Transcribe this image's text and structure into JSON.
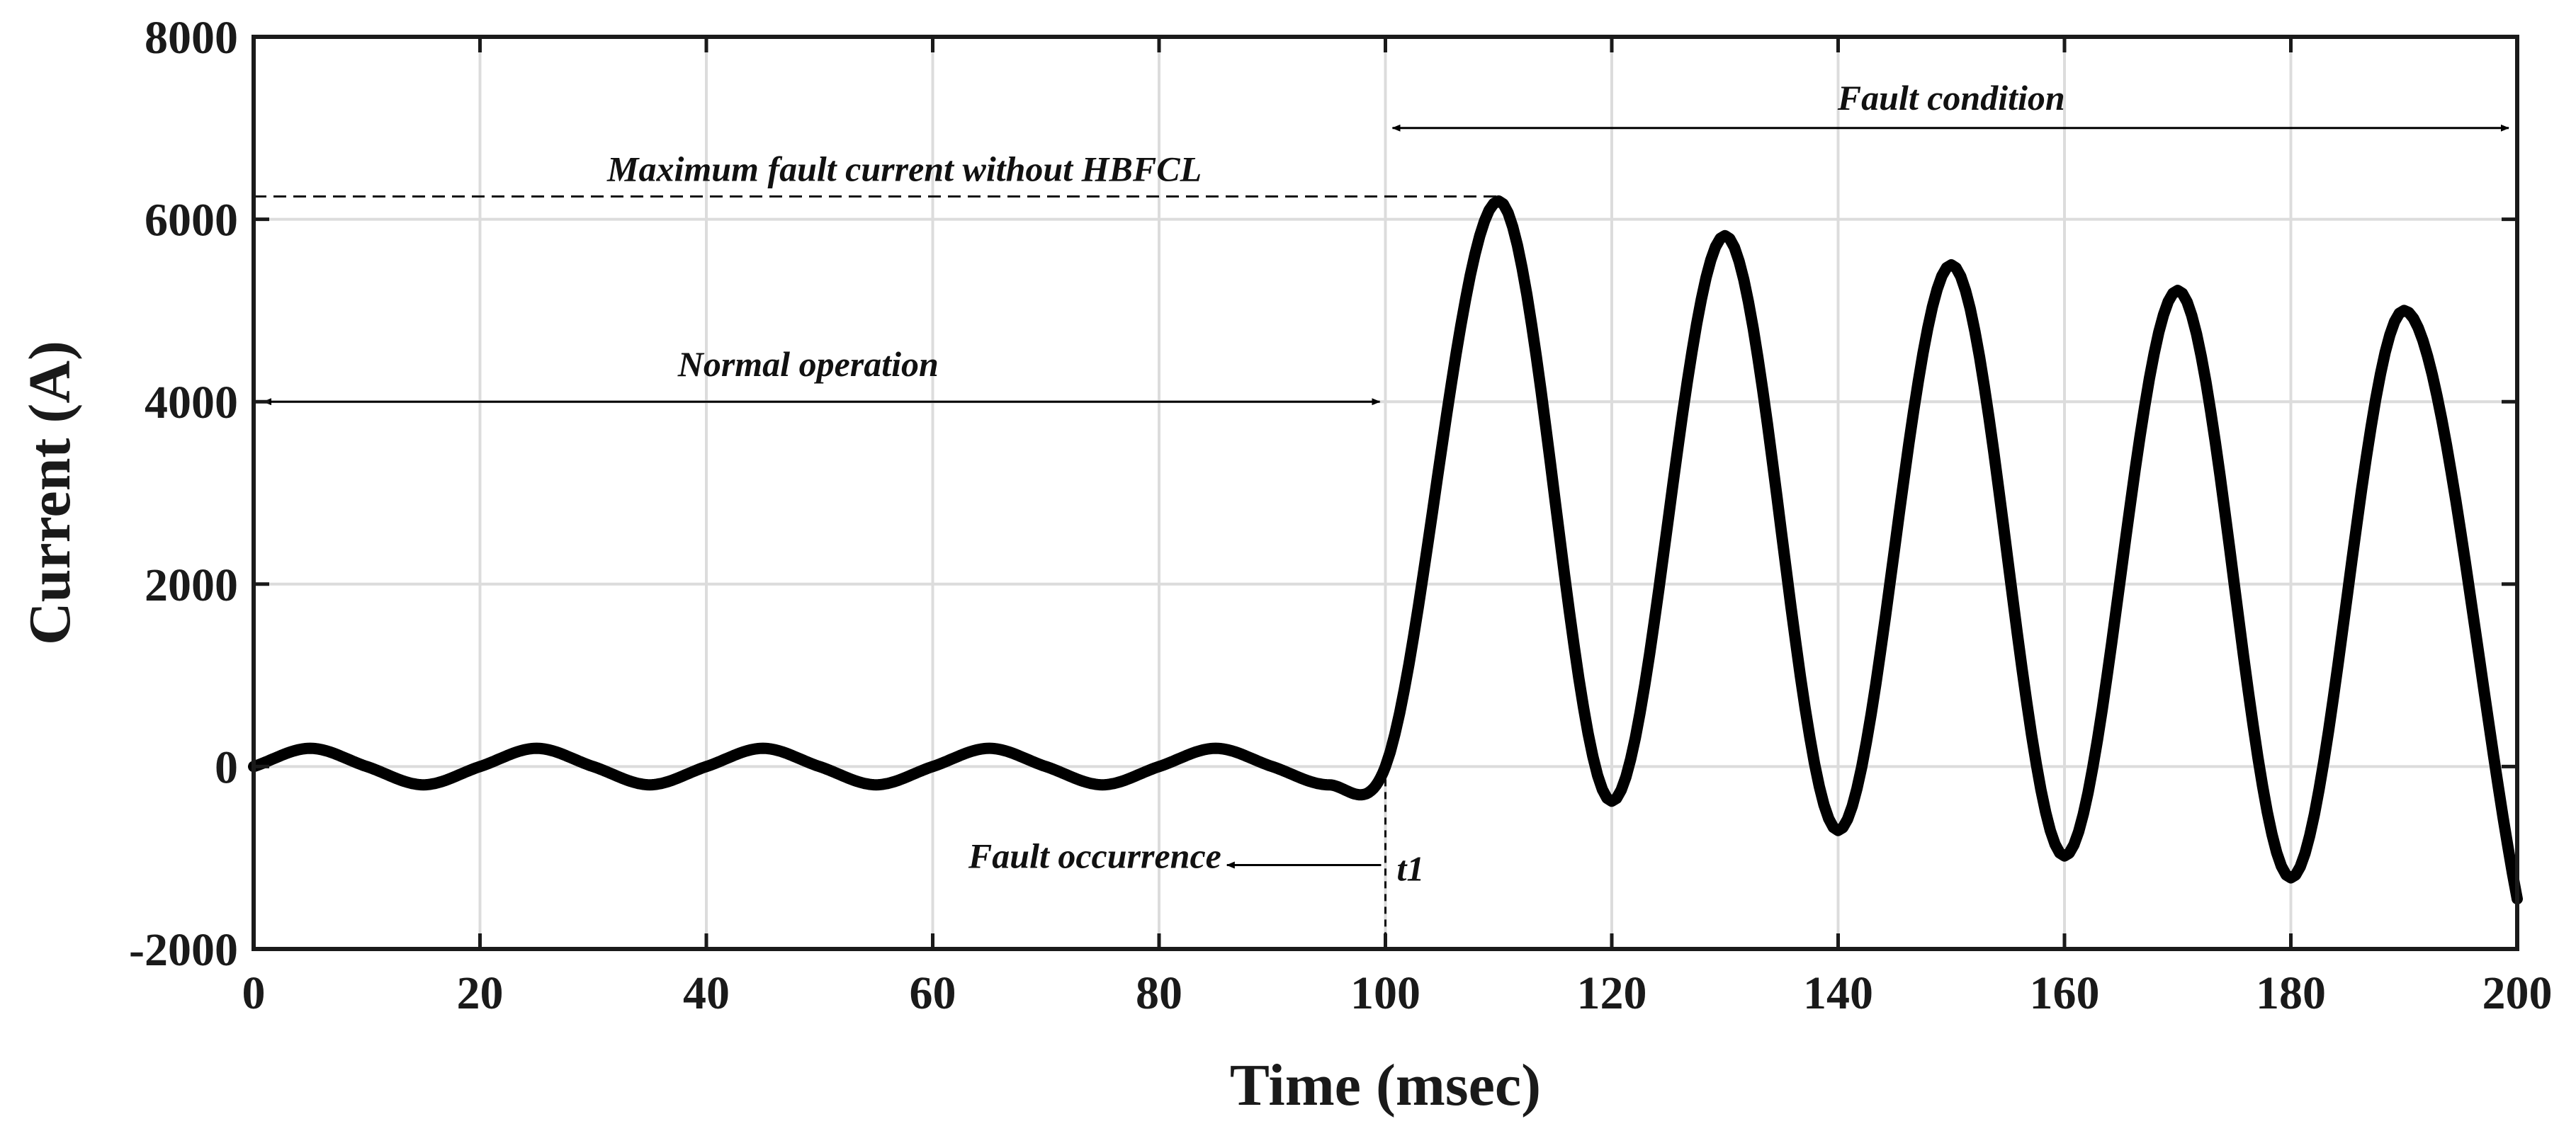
{
  "chart_data": {
    "type": "line",
    "title": "",
    "xlabel": "Time (msec)",
    "ylabel": "Current (A)",
    "xlim": [
      0,
      200
    ],
    "ylim": [
      -2000,
      8000
    ],
    "xticks": [
      0,
      20,
      40,
      60,
      80,
      100,
      120,
      140,
      160,
      180,
      200
    ],
    "yticks": [
      -2000,
      0,
      2000,
      4000,
      6000,
      8000
    ],
    "xtick_labels": [
      "0",
      "20",
      "40",
      "60",
      "80",
      "100",
      "120",
      "140",
      "160",
      "180",
      "200"
    ],
    "ytick_labels": [
      "-2000",
      "0",
      "2000",
      "4000",
      "6000",
      "8000"
    ],
    "grid": true,
    "line_color": "#000000",
    "series": [
      {
        "x": [
          0,
          5,
          10,
          15,
          20,
          25,
          30,
          35,
          40,
          45,
          50,
          55,
          60,
          65,
          70,
          75,
          80,
          85,
          90,
          95,
          100,
          110,
          120,
          130,
          140,
          150,
          160,
          170,
          180,
          190,
          200
        ],
        "values": [
          0,
          200,
          0,
          -200,
          0,
          200,
          0,
          -200,
          0,
          200,
          0,
          -200,
          0,
          200,
          0,
          -200,
          0,
          200,
          0,
          -200,
          0,
          6200,
          -380,
          5820,
          -700,
          5500,
          -980,
          5220,
          -1220,
          5000,
          -1450
        ]
      }
    ],
    "annotations": {
      "fault_condition": "Fault condition",
      "max_fault_current": "Maximum fault current without HBFCL",
      "normal_operation": "Normal operation",
      "fault_occurrence": "Fault occurrence",
      "t1": "t1"
    },
    "annotation_values": {
      "fault_time_ms": 100,
      "max_fault_current_a": 6250,
      "normal_arrow_level_a": 4000,
      "fault_arrow_level_a": 7000,
      "fault_occurrence_arrow_x_ms": 86
    }
  }
}
